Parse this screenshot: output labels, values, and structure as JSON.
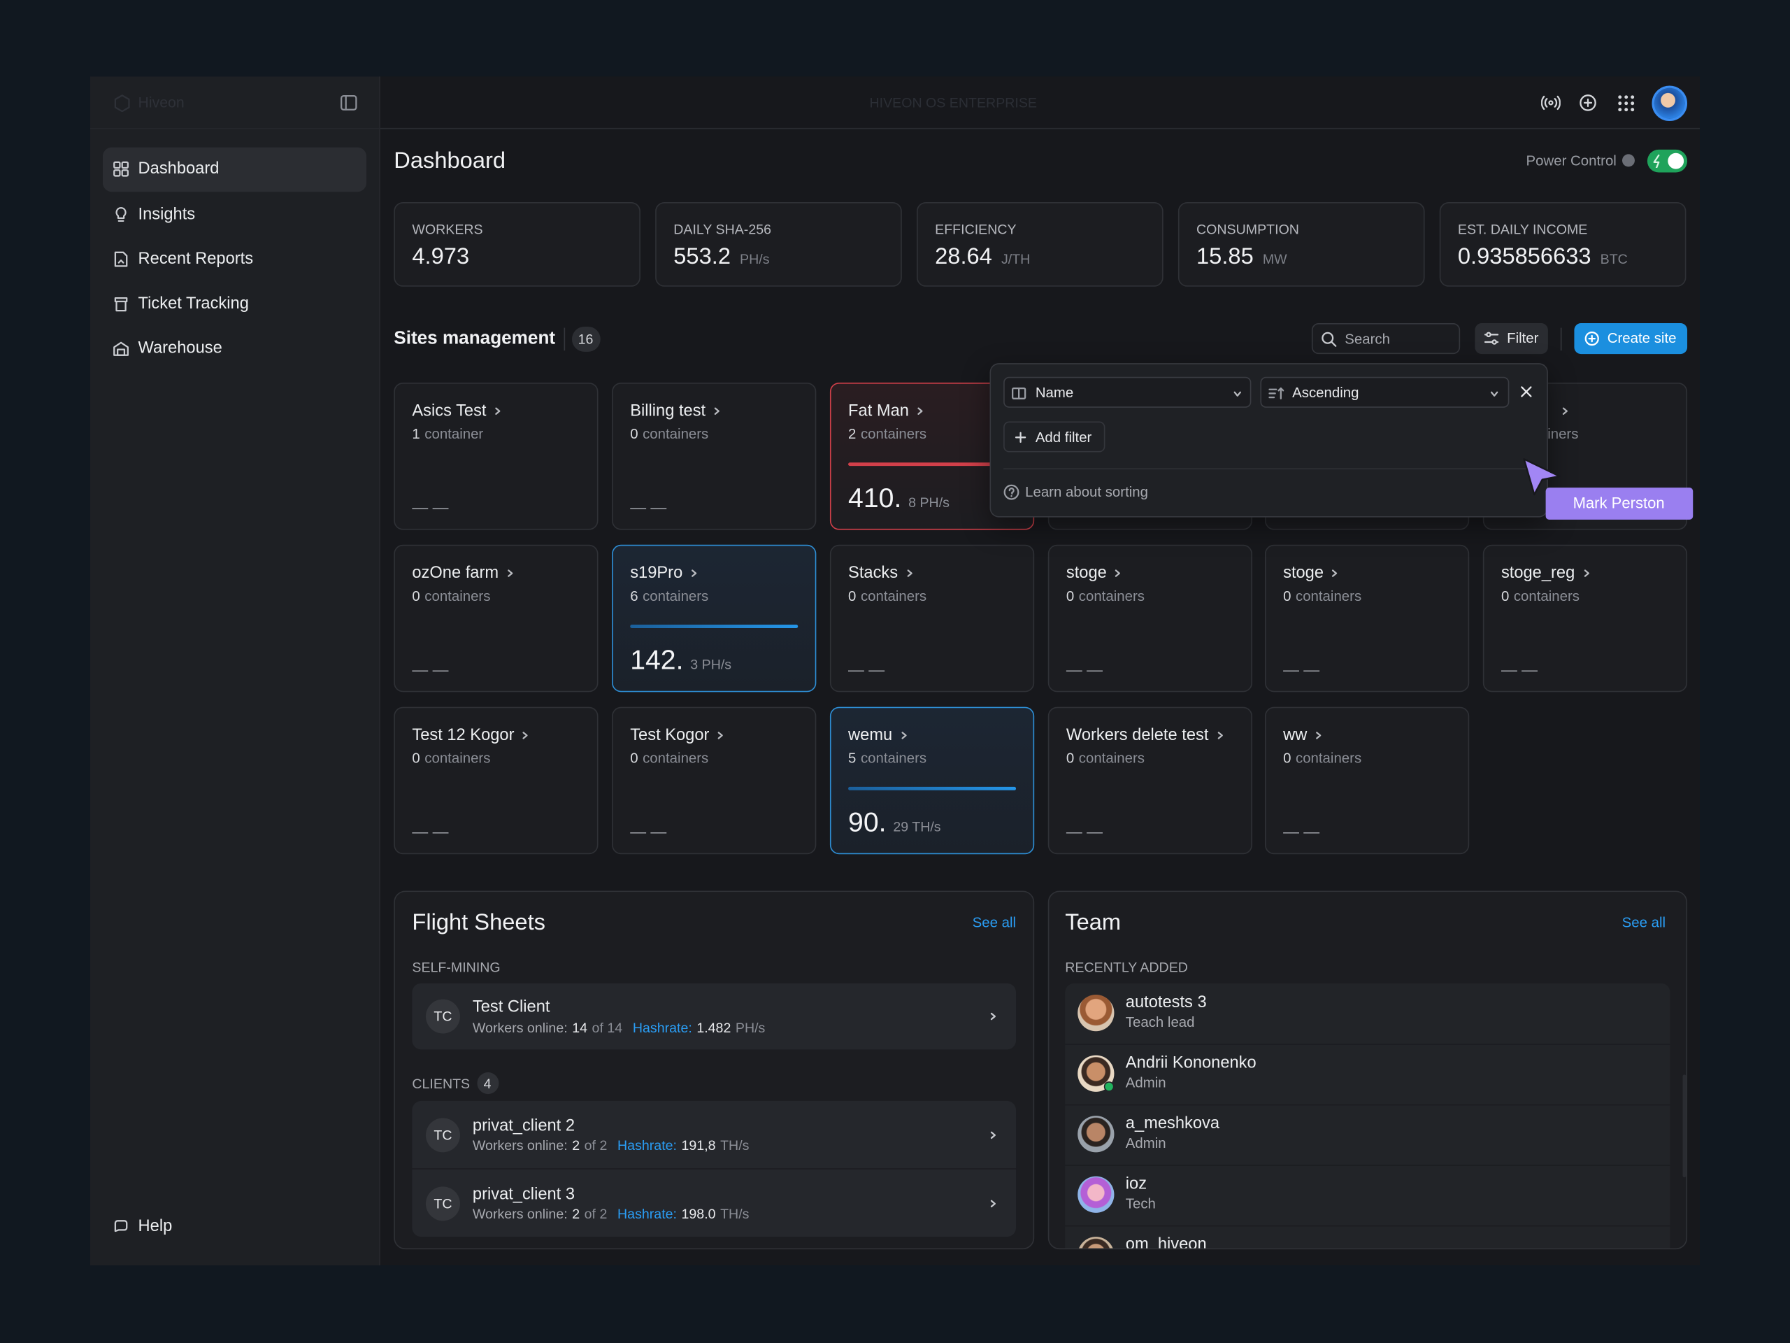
{
  "sidebar": {
    "logo": "Hiveon",
    "nav": [
      "Dashboard",
      "Insights",
      "Recent Reports",
      "Ticket Tracking",
      "Warehouse"
    ],
    "help": "Help"
  },
  "header": {
    "title": "HIVEON OS ENTERPRISE"
  },
  "dashboard": {
    "title": "Dashboard",
    "power_control": "Power Control"
  },
  "stats": [
    {
      "label": "WORKERS",
      "value": "4.973"
    },
    {
      "label": "DAILY SHA-256",
      "value": "553.2",
      "unit": "PH/s"
    },
    {
      "label": "EFFICIENCY",
      "value": "28.64",
      "unit": "J/TH"
    },
    {
      "label": "CONSUMPTION",
      "value": "15.85",
      "unit": "MW"
    },
    {
      "label": "EST. DAILY INCOME",
      "value": "0.935856633",
      "unit": "BTC"
    }
  ],
  "sites": {
    "title": "Sites management",
    "count": "16",
    "search": "Search",
    "filter": "Filter",
    "create": "Create site",
    "cards": [
      {
        "name": "Asics Test",
        "count": "1",
        "unit": "container",
        "empty": "— —"
      },
      {
        "name": "Billing test",
        "count": "0",
        "unit": "containers",
        "empty": "— —"
      },
      {
        "name": "Fat Man",
        "count": "2",
        "unit": "containers",
        "hashrate": "410.",
        "hashrate_unit": "8 PH/s",
        "status": "alert"
      },
      {},
      {},
      {
        "unit": "containers"
      },
      {
        "name": "ozOne farm",
        "count": "0",
        "unit": "containers",
        "empty": "— —"
      },
      {
        "name": "s19Pro",
        "count": "6",
        "unit": "containers",
        "hashrate": "142.",
        "hashrate_unit": "3 PH/s",
        "status": "active"
      },
      {
        "name": "Stacks",
        "count": "0",
        "unit": "containers",
        "empty": "— —"
      },
      {
        "name": "stoge",
        "count": "0",
        "unit": "containers",
        "empty": "— —"
      },
      {
        "name": "stoge",
        "count": "0",
        "unit": "containers",
        "empty": "— —"
      },
      {
        "name": "stoge_reg",
        "count": "0",
        "unit": "containers",
        "empty": "— —"
      },
      {
        "name": "Test 12 Kogor",
        "count": "0",
        "unit": "containers",
        "empty": "— —"
      },
      {
        "name": "Test Kogor",
        "count": "0",
        "unit": "containers",
        "empty": "— —"
      },
      {
        "name": "wemu",
        "count": "5",
        "unit": "containers",
        "hashrate": "90.",
        "hashrate_unit": "29 TH/s",
        "status": "active"
      },
      {
        "name": "Workers delete test",
        "count": "0",
        "unit": "containers",
        "empty": "— —"
      },
      {
        "name": "ww",
        "count": "0",
        "unit": "containers",
        "empty": "— —"
      }
    ]
  },
  "sort_popover": {
    "field": "Name",
    "order": "Ascending",
    "add_filter": "Add filter",
    "learn": "Learn about sorting"
  },
  "cursor": {
    "user": "Mark Perston"
  },
  "flight_sheets": {
    "title": "Flight Sheets",
    "see_all": "See all",
    "self_mining": {
      "label": "SELF-MINING",
      "items": [
        {
          "initials": "TC",
          "name": "Test Client",
          "workers_label": "Workers online:",
          "online": "14",
          "of": "of 14",
          "hashrate_label": "Hashrate:",
          "hashrate": "1.482",
          "unit": "PH/s"
        }
      ]
    },
    "clients": {
      "label": "CLIENTS",
      "count": "4",
      "items": [
        {
          "initials": "TC",
          "name": "privat_client 2",
          "workers_label": "Workers online:",
          "online": "2",
          "of": "of 2",
          "hashrate_label": "Hashrate:",
          "hashrate": "191,8",
          "unit": "TH/s"
        },
        {
          "initials": "TC",
          "name": "privat_client 3",
          "workers_label": "Workers online:",
          "online": "2",
          "of": "of 2",
          "hashrate_label": "Hashrate:",
          "hashrate": "198.0",
          "unit": "TH/s"
        }
      ]
    }
  },
  "team": {
    "title": "Team",
    "see_all": "See all",
    "recent_label": "RECENTLY ADDED",
    "members": [
      {
        "name": "autotests 3",
        "role": "Teach lead"
      },
      {
        "name": "Andrii Kononenko",
        "role": "Admin",
        "online": true
      },
      {
        "name": "a_meshkova",
        "role": "Admin"
      },
      {
        "name": "ioz",
        "role": "Tech"
      },
      {
        "name": "om_hiveon"
      }
    ]
  }
}
